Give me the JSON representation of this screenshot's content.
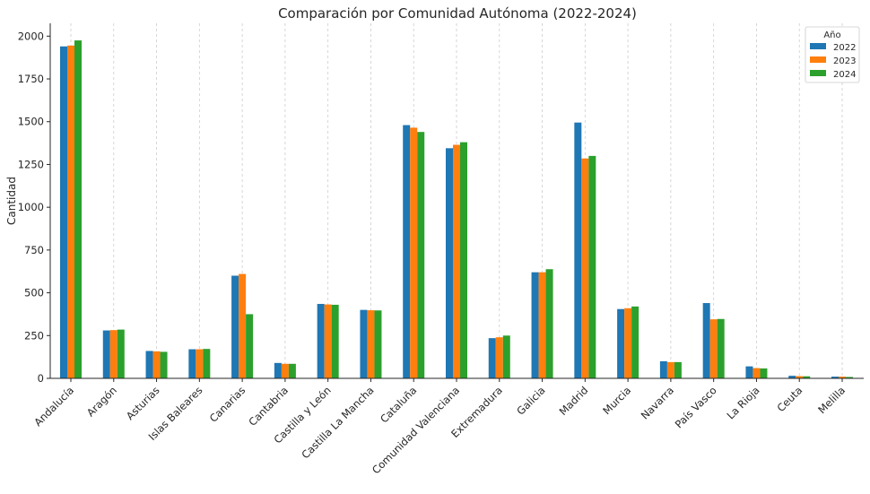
{
  "chart_data": {
    "type": "bar",
    "title": "Comparación por Comunidad Autónoma (2022-2024)",
    "xlabel": "",
    "ylabel": "Cantidad",
    "ylim": [
      0,
      2075
    ],
    "yticks": [
      0,
      250,
      500,
      750,
      1000,
      1250,
      1500,
      1750,
      2000
    ],
    "grid": "vertical dashed",
    "legend_title": "Año",
    "legend_position": "top-right",
    "categories": [
      "Andalucía",
      "Aragón",
      "Asturias",
      "Islas Baleares",
      "Canarias",
      "Cantabria",
      "Castilla y León",
      "Castilla La Mancha",
      "Cataluña",
      "Comunidad Valenciana",
      "Extremadura",
      "Galicia",
      "Madrid",
      "Murcia",
      "Navarra",
      "País Vasco",
      "La Rioja",
      "Ceuta",
      "Melilla"
    ],
    "series": [
      {
        "name": "2022",
        "color": "#1f77b4",
        "values": [
          1940,
          280,
          160,
          170,
          600,
          90,
          435,
          400,
          1480,
          1345,
          235,
          620,
          1495,
          405,
          100,
          440,
          70,
          15,
          10
        ]
      },
      {
        "name": "2023",
        "color": "#ff7f0e",
        "values": [
          1945,
          282,
          158,
          170,
          610,
          85,
          432,
          398,
          1465,
          1365,
          240,
          620,
          1285,
          410,
          95,
          345,
          60,
          13,
          10
        ]
      },
      {
        "name": "2024",
        "color": "#2ca02c",
        "values": [
          1975,
          285,
          155,
          172,
          375,
          85,
          430,
          397,
          1440,
          1380,
          250,
          638,
          1300,
          420,
          95,
          347,
          58,
          12,
          8
        ]
      }
    ]
  }
}
